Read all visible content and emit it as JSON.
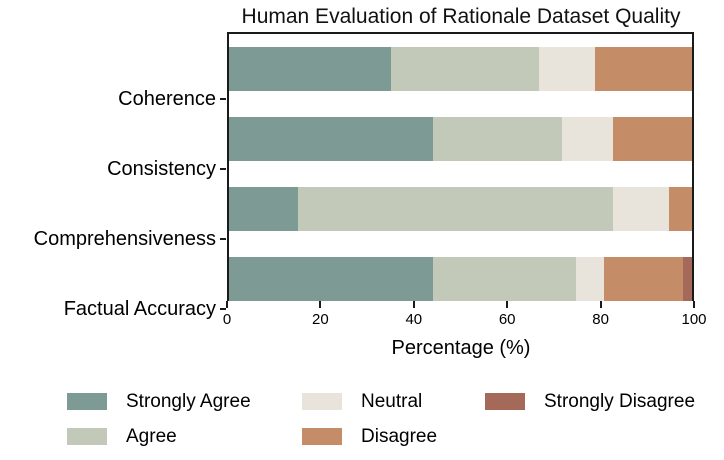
{
  "chart_data": {
    "type": "bar",
    "orientation": "horizontal-stacked",
    "title": "Human Evaluation of Rationale Dataset Quality",
    "xlabel": "Percentage (%)",
    "xlim": [
      0,
      100
    ],
    "xticks": [
      0,
      20,
      40,
      60,
      80,
      100
    ],
    "grid": false,
    "legend_position": "below-chart",
    "categories": [
      "Coherence",
      "Consistency",
      "Comprehensiveness",
      "Factual Accuracy"
    ],
    "series": [
      {
        "name": "Strongly Agree",
        "color": "#7D9A94",
        "values": [
          35,
          44,
          15,
          44
        ]
      },
      {
        "name": "Agree",
        "color": "#C3C9B8",
        "values": [
          32,
          28,
          68,
          31
        ]
      },
      {
        "name": "Neutral",
        "color": "#E8E3DB",
        "values": [
          12,
          11,
          12,
          6
        ]
      },
      {
        "name": "Disagree",
        "color": "#C58C68",
        "values": [
          21,
          17,
          5,
          17
        ]
      },
      {
        "name": "Strongly Disagree",
        "color": "#A5695A",
        "values": [
          0,
          0,
          0,
          2
        ]
      }
    ],
    "legend_columns": [
      [
        "Strongly Agree",
        "Agree"
      ],
      [
        "Neutral",
        "Disagree"
      ],
      [
        "Strongly Disagree"
      ]
    ],
    "axis_color": "#1a1a1a"
  },
  "layout_values": {
    "bar_row_tops": [
      13,
      83,
      153,
      223
    ],
    "bar_centers": [
      67,
      137,
      207,
      277
    ]
  }
}
